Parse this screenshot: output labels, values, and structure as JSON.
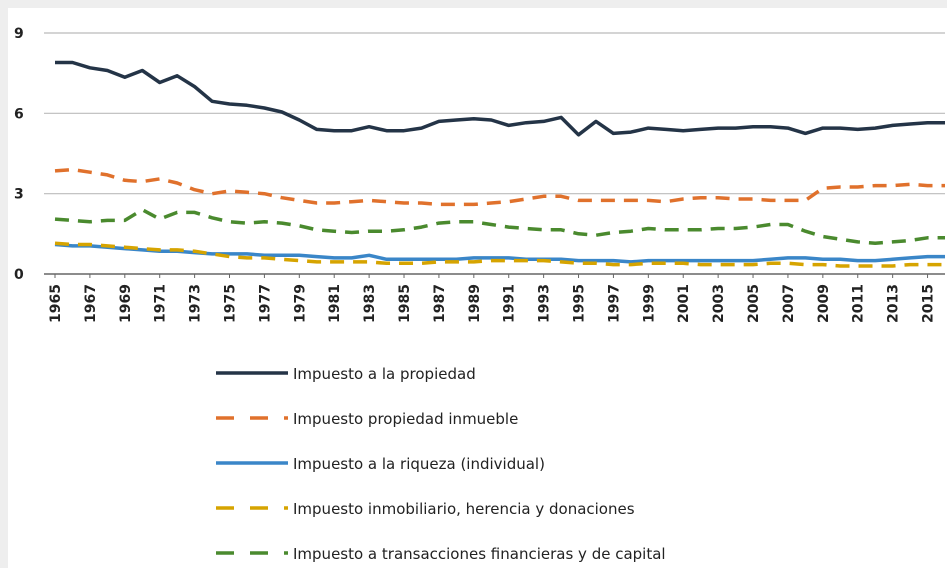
{
  "chart_data": {
    "type": "line",
    "x": [
      1965,
      1966,
      1967,
      1968,
      1969,
      1970,
      1971,
      1972,
      1973,
      1974,
      1975,
      1976,
      1977,
      1978,
      1979,
      1980,
      1981,
      1982,
      1983,
      1984,
      1985,
      1986,
      1987,
      1988,
      1989,
      1990,
      1991,
      1992,
      1993,
      1994,
      1995,
      1996,
      1997,
      1998,
      1999,
      2000,
      2001,
      2002,
      2003,
      2004,
      2005,
      2006,
      2007,
      2008,
      2009,
      2010,
      2011,
      2012,
      2013,
      2014,
      2015,
      2016
    ],
    "xlim": [
      1965,
      2016
    ],
    "xticks": [
      1965,
      1967,
      1969,
      1971,
      1973,
      1975,
      1977,
      1979,
      1981,
      1983,
      1985,
      1987,
      1989,
      1991,
      1993,
      1995,
      1997,
      1999,
      2001,
      2003,
      2005,
      2007,
      2009,
      2011,
      2013,
      2015
    ],
    "ylim": [
      0,
      9
    ],
    "yticks": [
      0,
      3,
      6,
      9
    ],
    "grid": true,
    "series": [
      {
        "name": "Impuesto a la propiedad",
        "color": "#243447",
        "dashed": false,
        "values": [
          7.9,
          7.9,
          7.7,
          7.6,
          7.35,
          7.6,
          7.15,
          7.4,
          7.0,
          6.45,
          6.35,
          6.3,
          6.2,
          6.05,
          5.75,
          5.4,
          5.35,
          5.35,
          5.5,
          5.35,
          5.35,
          5.45,
          5.7,
          5.75,
          5.8,
          5.75,
          5.55,
          5.65,
          5.7,
          5.85,
          5.2,
          5.7,
          5.25,
          5.3,
          5.45,
          5.4,
          5.35,
          5.4,
          5.45,
          5.45,
          5.5,
          5.5,
          5.45,
          5.25,
          5.45,
          5.45,
          5.4,
          5.45,
          5.55,
          5.6,
          5.65,
          5.65
        ]
      },
      {
        "name": "Impuesto propiedad inmueble",
        "color": "#e0712c",
        "dashed": true,
        "values": [
          3.85,
          3.9,
          3.8,
          3.7,
          3.5,
          3.45,
          3.55,
          3.4,
          3.15,
          3.0,
          3.1,
          3.05,
          3.0,
          2.85,
          2.75,
          2.65,
          2.65,
          2.7,
          2.75,
          2.7,
          2.65,
          2.65,
          2.6,
          2.6,
          2.6,
          2.65,
          2.7,
          2.8,
          2.9,
          2.9,
          2.75,
          2.75,
          2.75,
          2.75,
          2.75,
          2.7,
          2.8,
          2.85,
          2.85,
          2.8,
          2.8,
          2.75,
          2.75,
          2.75,
          3.2,
          3.25,
          3.25,
          3.3,
          3.3,
          3.35,
          3.3,
          3.3
        ]
      },
      {
        "name": "Impuesto a la riqueza (individual)",
        "color": "#3a86c8",
        "dashed": false,
        "values": [
          1.1,
          1.05,
          1.05,
          1.0,
          0.95,
          0.9,
          0.85,
          0.85,
          0.8,
          0.75,
          0.75,
          0.75,
          0.7,
          0.7,
          0.7,
          0.65,
          0.6,
          0.6,
          0.7,
          0.55,
          0.55,
          0.55,
          0.55,
          0.55,
          0.6,
          0.6,
          0.6,
          0.55,
          0.55,
          0.55,
          0.5,
          0.5,
          0.5,
          0.45,
          0.5,
          0.5,
          0.5,
          0.5,
          0.5,
          0.5,
          0.5,
          0.55,
          0.6,
          0.6,
          0.55,
          0.55,
          0.5,
          0.5,
          0.55,
          0.6,
          0.65,
          0.65
        ]
      },
      {
        "name": "Impuesto inmobiliario, herencia y donaciones",
        "color": "#d6a400",
        "dashed": true,
        "values": [
          1.15,
          1.1,
          1.1,
          1.05,
          1.0,
          0.95,
          0.9,
          0.9,
          0.85,
          0.75,
          0.65,
          0.6,
          0.6,
          0.55,
          0.5,
          0.45,
          0.45,
          0.45,
          0.45,
          0.4,
          0.4,
          0.4,
          0.45,
          0.45,
          0.45,
          0.5,
          0.5,
          0.5,
          0.5,
          0.45,
          0.4,
          0.4,
          0.35,
          0.35,
          0.4,
          0.4,
          0.4,
          0.35,
          0.35,
          0.35,
          0.35,
          0.4,
          0.4,
          0.35,
          0.35,
          0.3,
          0.3,
          0.3,
          0.3,
          0.35,
          0.35,
          0.35
        ]
      },
      {
        "name": "Impuesto a transacciones financieras y de capital",
        "color": "#4a8a2e",
        "dashed": true,
        "values": [
          2.05,
          2.0,
          1.95,
          2.0,
          2.0,
          2.4,
          2.05,
          2.3,
          2.3,
          2.1,
          1.95,
          1.9,
          1.95,
          1.9,
          1.8,
          1.65,
          1.6,
          1.55,
          1.6,
          1.6,
          1.65,
          1.75,
          1.9,
          1.95,
          1.95,
          1.85,
          1.75,
          1.7,
          1.65,
          1.65,
          1.5,
          1.45,
          1.55,
          1.6,
          1.7,
          1.65,
          1.65,
          1.65,
          1.7,
          1.7,
          1.75,
          1.85,
          1.85,
          1.6,
          1.4,
          1.3,
          1.2,
          1.15,
          1.2,
          1.25,
          1.35,
          1.35
        ]
      }
    ]
  }
}
